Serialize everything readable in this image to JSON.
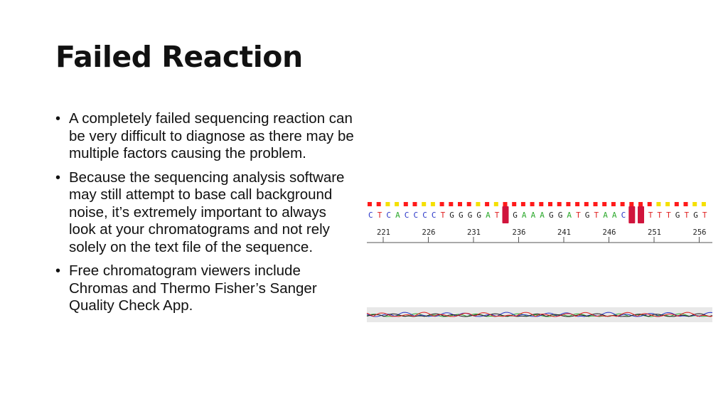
{
  "slide": {
    "title": "Failed Reaction",
    "bullets": [
      "A completely failed sequencing reaction can be very difficult to diagnose as there may be multiple factors causing the problem.",
      "Because the sequencing analysis software may still attempt to base call background noise, it’s extremely important to always look at your chromatograms and not rely solely on the text file of the sequence.",
      "Free chromatogram viewers include Chromas and Thermo Fisher’s Sanger Quality Check App."
    ]
  },
  "chromatogram": {
    "sequence": "CTCACCCCTGGGGATNGAAAGGATGTAACNNTTTGTGT",
    "quality": [
      "red",
      "red",
      "yellow",
      "yellow",
      "red",
      "red",
      "yellow",
      "yellow",
      "red",
      "red",
      "red",
      "red",
      "yellow",
      "red",
      "yellow",
      "red",
      "red",
      "red",
      "red",
      "red",
      "red",
      "red",
      "red",
      "red",
      "red",
      "red",
      "red",
      "red",
      "red",
      "red",
      "red",
      "red",
      "yellow",
      "yellow",
      "red",
      "red",
      "yellow",
      "yellow"
    ],
    "ambiguous_positions": [
      15,
      29,
      30
    ],
    "positions": [
      "221",
      "226",
      "231",
      "236",
      "241",
      "246",
      "251",
      "256"
    ],
    "colors": {
      "A": "#2eaa2e",
      "C": "#2a36c8",
      "G": "#222222",
      "T": "#e02020",
      "highlight": "#d0143c",
      "quality_high": "#ff1a1a",
      "quality_low": "#f5e000"
    }
  }
}
